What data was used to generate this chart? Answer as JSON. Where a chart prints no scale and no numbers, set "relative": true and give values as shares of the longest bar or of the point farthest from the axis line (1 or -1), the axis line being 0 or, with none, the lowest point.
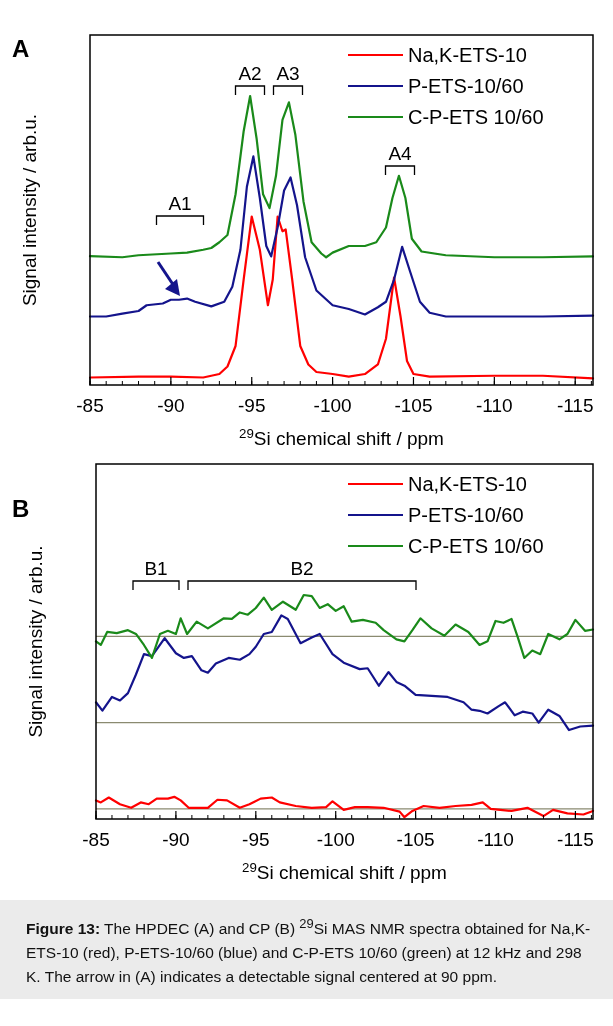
{
  "chart_data": [
    {
      "type": "line",
      "title": "A",
      "xlabel": "$^{29}$Si chemical shift / ppm",
      "ylabel": "Signal intensity / arb.u.",
      "relative": true,
      "xlim": [
        -85,
        -116.1
      ],
      "xticks": [
        -85,
        -90,
        -95,
        -100,
        -105,
        -110,
        -115
      ],
      "legend": "top right",
      "line_style": "solid",
      "marker": "none",
      "annotations": [
        "A1",
        "A2",
        "A3",
        "A4"
      ],
      "series": [
        {
          "name": "Na,K-ETS-10",
          "color": "#ff0000",
          "x": [
            -85,
            -88,
            -90,
            -92,
            -93,
            -93.5,
            -94,
            -94.5,
            -95,
            -95.5,
            -96,
            -96.3,
            -96.6,
            -96.9,
            -97.1,
            -97.5,
            -98,
            -98.5,
            -99,
            -100,
            -101,
            -102,
            -102.8,
            -103.3,
            -103.8,
            -104.2,
            -104.6,
            -105,
            -106,
            -110,
            -113,
            -116.1
          ],
          "values": [
            0.026,
            0.029,
            0.029,
            0.026,
            0.038,
            0.064,
            0.135,
            0.365,
            0.583,
            0.468,
            0.276,
            0.365,
            0.583,
            0.532,
            0.538,
            0.365,
            0.135,
            0.071,
            0.045,
            0.038,
            0.029,
            0.038,
            0.071,
            0.16,
            0.372,
            0.237,
            0.083,
            0.038,
            0.029,
            0.032,
            0.032,
            0.023
          ]
        },
        {
          "name": "P-ETS-10/60",
          "color": "#14148c",
          "x": [
            -85,
            -86,
            -87,
            -88,
            -88.5,
            -89.5,
            -90,
            -90.5,
            -91,
            -91.5,
            -92.5,
            -93.3,
            -93.8,
            -94.3,
            -94.7,
            -95.1,
            -95.5,
            -95.9,
            -96.2,
            -96.6,
            -97,
            -97.4,
            -97.8,
            -98.3,
            -99,
            -100,
            -101,
            -102,
            -102.8,
            -103.3,
            -103.8,
            -104.3,
            -104.8,
            -105.4,
            -106,
            -107,
            -110,
            -113,
            -116.1
          ],
          "values": [
            0.237,
            0.237,
            0.247,
            0.256,
            0.276,
            0.282,
            0.295,
            0.295,
            0.299,
            0.288,
            0.272,
            0.288,
            0.34,
            0.468,
            0.686,
            0.791,
            0.647,
            0.481,
            0.445,
            0.545,
            0.673,
            0.718,
            0.622,
            0.442,
            0.327,
            0.276,
            0.263,
            0.244,
            0.269,
            0.288,
            0.365,
            0.478,
            0.391,
            0.288,
            0.25,
            0.237,
            0.237,
            0.237,
            0.24
          ]
        },
        {
          "name": "C-P-ETS 10/60",
          "color": "#1a8a1a",
          "x": [
            -85,
            -87,
            -88,
            -90,
            -91,
            -92,
            -92.5,
            -93,
            -93.5,
            -94,
            -94.5,
            -94.9,
            -95.3,
            -95.7,
            -96.1,
            -96.5,
            -96.9,
            -97.3,
            -97.7,
            -98.2,
            -98.7,
            -99.3,
            -99.6,
            -100,
            -101,
            -102,
            -102.7,
            -103.3,
            -103.7,
            -104.1,
            -104.5,
            -104.9,
            -105.5,
            -107,
            -110,
            -113,
            -116.1
          ],
          "values": [
            0.446,
            0.442,
            0.449,
            0.455,
            0.458,
            0.468,
            0.474,
            0.494,
            0.519,
            0.66,
            0.878,
            1,
            0.853,
            0.66,
            0.612,
            0.724,
            0.917,
            0.978,
            0.865,
            0.635,
            0.494,
            0.455,
            0.442,
            0.458,
            0.481,
            0.481,
            0.494,
            0.545,
            0.647,
            0.724,
            0.647,
            0.506,
            0.462,
            0.449,
            0.442,
            0.442,
            0.445
          ]
        }
      ]
    },
    {
      "type": "line",
      "title": "B",
      "xlabel": "$^{29}$Si chemical shift / ppm",
      "ylabel": "Signal intensity / arb.u.",
      "relative": true,
      "xlim": [
        -85,
        -116.1
      ],
      "xticks": [
        -85,
        -90,
        -95,
        -100,
        -105,
        -110,
        -115
      ],
      "legend": "top right",
      "line_style": "solid",
      "marker": "none",
      "ref_lines": [
        {
          "axis": "y",
          "value": 0.815,
          "color": "#8a8a70"
        },
        {
          "axis": "y",
          "value": 0.43,
          "color": "#8a8a70"
        },
        {
          "axis": "y",
          "value": 0.045,
          "color": "#8a8a70"
        }
      ],
      "annotations": [
        "B1",
        "B2",
        "**Figure 13:** The HPDEC (A) and CP (B) $^{29}$Si MAS NMR spectra obtained for Na,K-ETS-10 (red), P-ETS-10/60 (blue) and C-P-ETS 10/60 (green) at 12 kHz and 298 K. The arrow in (A) indicates a detectable signal centered at 90 ppm."
      ],
      "series": [
        {
          "name": "Na,K-ETS-10",
          "color": "#ff0000",
          "x": [
            -85,
            -85.3,
            -85.8,
            -86.5,
            -87.2,
            -87.8,
            -88.3,
            -88.8,
            -89.5,
            -89.9,
            -90.3,
            -90.8,
            -91.5,
            -92,
            -92.6,
            -93.2,
            -94,
            -94.6,
            -95.3,
            -96,
            -96.5,
            -97.5,
            -98.5,
            -99.4,
            -99.8,
            -100.5,
            -101.2,
            -102,
            -103,
            -104,
            -104.3,
            -104.8,
            -105.5,
            -106.5,
            -107.5,
            -108.5,
            -109.2,
            -109.7,
            -111,
            -112,
            -113,
            -113.6,
            -114.5,
            -115.5,
            -116.1
          ],
          "values": [
            0.083,
            0.074,
            0.096,
            0.066,
            0.05,
            0.074,
            0.066,
            0.091,
            0.091,
            0.099,
            0.083,
            0.05,
            0.05,
            0.05,
            0.086,
            0.083,
            0.05,
            0.066,
            0.091,
            0.096,
            0.074,
            0.058,
            0.05,
            0.053,
            0.079,
            0.041,
            0.053,
            0.053,
            0.05,
            0.033,
            0.008,
            0.036,
            0.058,
            0.05,
            0.058,
            0.063,
            0.074,
            0.045,
            0.036,
            0.05,
            0.013,
            0.041,
            0.025,
            0.02,
            0.036
          ]
        },
        {
          "name": "P-ETS-10/60",
          "color": "#14148c",
          "x": [
            -85,
            -85.4,
            -86,
            -86.5,
            -87,
            -87.5,
            -88,
            -88.5,
            -89.3,
            -90,
            -90.5,
            -91,
            -91.6,
            -92,
            -92.5,
            -93.3,
            -94,
            -94.6,
            -95,
            -95.5,
            -96,
            -96.6,
            -97,
            -97.8,
            -98.5,
            -99,
            -99.8,
            -100.5,
            -101.5,
            -102,
            -102.7,
            -103.3,
            -103.8,
            -104.3,
            -105,
            -106,
            -107,
            -108,
            -108.5,
            -109,
            -109.5,
            -110.2,
            -110.6,
            -111.2,
            -111.7,
            -112.3,
            -112.7,
            -113.3,
            -114,
            -114.6,
            -115.3,
            -116.1
          ],
          "values": [
            0.521,
            0.484,
            0.545,
            0.529,
            0.562,
            0.645,
            0.736,
            0.727,
            0.807,
            0.74,
            0.719,
            0.727,
            0.664,
            0.653,
            0.694,
            0.719,
            0.711,
            0.736,
            0.769,
            0.826,
            0.835,
            0.909,
            0.893,
            0.785,
            0.81,
            0.826,
            0.736,
            0.698,
            0.669,
            0.673,
            0.595,
            0.656,
            0.612,
            0.595,
            0.554,
            0.55,
            0.545,
            0.521,
            0.488,
            0.483,
            0.471,
            0.504,
            0.521,
            0.463,
            0.479,
            0.471,
            0.43,
            0.488,
            0.46,
            0.397,
            0.413,
            0.417
          ]
        },
        {
          "name": "C-P-ETS 10/60",
          "color": "#1a8a1a",
          "x": [
            -85,
            -85.3,
            -85.7,
            -86.3,
            -87,
            -87.5,
            -88,
            -88.5,
            -89,
            -89.5,
            -90,
            -90.3,
            -90.7,
            -91.3,
            -92,
            -93,
            -93.5,
            -94,
            -94.5,
            -95,
            -95.5,
            -96,
            -96.7,
            -97.5,
            -98,
            -98.5,
            -99,
            -99.5,
            -100,
            -100.5,
            -101,
            -101.7,
            -102.5,
            -103,
            -103.8,
            -104.3,
            -104.8,
            -105.3,
            -106,
            -106.8,
            -107.5,
            -108.3,
            -109,
            -109.5,
            -110,
            -110.5,
            -111,
            -111.4,
            -111.8,
            -112.3,
            -112.8,
            -113.3,
            -114,
            -114.5,
            -115,
            -115.6,
            -116.1
          ],
          "values": [
            0.793,
            0.777,
            0.835,
            0.83,
            0.843,
            0.826,
            0.777,
            0.719,
            0.826,
            0.84,
            0.826,
            0.896,
            0.826,
            0.881,
            0.851,
            0.896,
            0.893,
            0.922,
            0.912,
            0.942,
            0.988,
            0.934,
            0.97,
            0.934,
            1,
            0.995,
            0.942,
            0.959,
            0.929,
            0.95,
            0.881,
            0.889,
            0.876,
            0.843,
            0.802,
            0.793,
            0.843,
            0.896,
            0.851,
            0.818,
            0.868,
            0.835,
            0.777,
            0.793,
            0.884,
            0.876,
            0.893,
            0.81,
            0.719,
            0.752,
            0.736,
            0.826,
            0.802,
            0.826,
            0.889,
            0.84,
            0.846
          ]
        }
      ]
    }
  ]
}
